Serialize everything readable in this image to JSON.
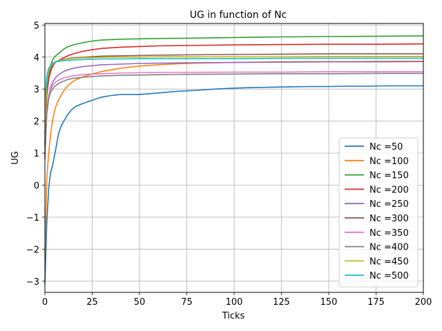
{
  "chart_data": {
    "type": "line",
    "title": "UG in function of Nc",
    "xlabel": "Ticks",
    "ylabel": "UG",
    "xlim": [
      0,
      200
    ],
    "ylim": [
      -3.35,
      5.05
    ],
    "xticks": [
      0,
      25,
      50,
      75,
      100,
      125,
      150,
      175,
      200
    ],
    "yticks": [
      -3,
      -2,
      -1,
      0,
      1,
      2,
      3,
      4,
      5
    ],
    "xtick_labels": [
      "0",
      "25",
      "50",
      "75",
      "100",
      "125",
      "150",
      "175",
      "200"
    ],
    "ytick_labels": [
      "−3",
      "−2",
      "−1",
      "0",
      "1",
      "2",
      "3",
      "4",
      "5"
    ],
    "grid": true,
    "legend_position": "lower right",
    "series": [
      {
        "name": "Nc =50",
        "color": "#1f77b4",
        "x": [
          0,
          1,
          2,
          3,
          4,
          5,
          6,
          7,
          8,
          9,
          10,
          12,
          14,
          16,
          18,
          20,
          25,
          30,
          35,
          40,
          45,
          50,
          60,
          70,
          80,
          90,
          100,
          110,
          120,
          130,
          140,
          150,
          160,
          170,
          180,
          190,
          200
        ],
        "y": [
          -3.1,
          -1.2,
          -0.1,
          0.4,
          0.6,
          0.9,
          1.2,
          1.55,
          1.75,
          1.9,
          2.0,
          2.2,
          2.35,
          2.45,
          2.5,
          2.55,
          2.65,
          2.75,
          2.8,
          2.83,
          2.83,
          2.83,
          2.88,
          2.93,
          2.96,
          3.0,
          3.03,
          3.05,
          3.06,
          3.07,
          3.08,
          3.08,
          3.09,
          3.09,
          3.1,
          3.1,
          3.1
        ]
      },
      {
        "name": "Nc =100",
        "color": "#ff7f0e",
        "x": [
          0,
          1,
          2,
          3,
          4,
          5,
          6,
          8,
          10,
          12,
          14,
          16,
          18,
          20,
          25,
          30,
          35,
          40,
          50,
          60,
          70,
          80,
          100,
          120,
          140,
          160,
          180,
          200
        ],
        "y": [
          -2.2,
          0.2,
          1.0,
          1.6,
          2.0,
          2.3,
          2.5,
          2.75,
          2.95,
          3.1,
          3.2,
          3.28,
          3.33,
          3.38,
          3.47,
          3.55,
          3.6,
          3.65,
          3.72,
          3.76,
          3.79,
          3.81,
          3.83,
          3.85,
          3.86,
          3.86,
          3.87,
          3.87
        ]
      },
      {
        "name": "Nc =150",
        "color": "#2ca02c",
        "x": [
          0,
          1,
          2,
          3,
          4,
          5,
          6,
          8,
          10,
          12,
          15,
          20,
          25,
          30,
          40,
          50,
          60,
          75,
          100,
          125,
          150,
          175,
          200
        ],
        "y": [
          1.2,
          3.0,
          3.5,
          3.75,
          3.9,
          4.0,
          4.05,
          4.15,
          4.25,
          4.32,
          4.38,
          4.45,
          4.5,
          4.53,
          4.56,
          4.57,
          4.58,
          4.59,
          4.61,
          4.63,
          4.64,
          4.65,
          4.66
        ]
      },
      {
        "name": "Nc =200",
        "color": "#d62728",
        "x": [
          0,
          1,
          2,
          3,
          4,
          5,
          6,
          8,
          10,
          12,
          15,
          20,
          25,
          30,
          40,
          50,
          60,
          75,
          100,
          125,
          150,
          175,
          200
        ],
        "y": [
          1.3,
          2.8,
          3.3,
          3.55,
          3.7,
          3.8,
          3.85,
          3.92,
          3.98,
          4.04,
          4.1,
          4.18,
          4.23,
          4.27,
          4.31,
          4.33,
          4.35,
          4.36,
          4.38,
          4.39,
          4.4,
          4.4,
          4.41
        ]
      },
      {
        "name": "Nc =250",
        "color": "#9467bd",
        "x": [
          0,
          1,
          2,
          3,
          4,
          5,
          6,
          8,
          10,
          12,
          15,
          20,
          25,
          30,
          40,
          50,
          60,
          75,
          100,
          125,
          150,
          175,
          200
        ],
        "y": [
          0.8,
          2.3,
          2.8,
          3.05,
          3.2,
          3.3,
          3.38,
          3.48,
          3.55,
          3.6,
          3.65,
          3.7,
          3.73,
          3.76,
          3.78,
          3.8,
          3.81,
          3.82,
          3.83,
          3.84,
          3.85,
          3.85,
          3.86
        ]
      },
      {
        "name": "Nc =300",
        "color": "#8c564b",
        "x": [
          0,
          1,
          2,
          3,
          4,
          5,
          6,
          8,
          10,
          12,
          15,
          20,
          25,
          30,
          40,
          50,
          60,
          75,
          100,
          125,
          150,
          175,
          200
        ],
        "y": [
          1.6,
          3.0,
          3.45,
          3.65,
          3.75,
          3.82,
          3.86,
          3.9,
          3.93,
          3.95,
          3.97,
          3.99,
          4.01,
          4.03,
          4.04,
          4.05,
          4.06,
          4.07,
          4.08,
          4.09,
          4.1,
          4.1,
          4.1
        ]
      },
      {
        "name": "Nc =350",
        "color": "#e377c2",
        "x": [
          0,
          1,
          2,
          3,
          4,
          5,
          6,
          8,
          10,
          12,
          15,
          20,
          25,
          30,
          40,
          50,
          60,
          75,
          100,
          125,
          150,
          175,
          200
        ],
        "y": [
          0.9,
          2.3,
          2.8,
          3.0,
          3.1,
          3.18,
          3.23,
          3.3,
          3.35,
          3.38,
          3.42,
          3.45,
          3.47,
          3.48,
          3.5,
          3.51,
          3.52,
          3.52,
          3.53,
          3.53,
          3.54,
          3.54,
          3.54
        ]
      },
      {
        "name": "Nc =400",
        "color": "#7f7f7f",
        "x": [
          0,
          1,
          2,
          3,
          4,
          5,
          6,
          8,
          10,
          12,
          15,
          20,
          25,
          30,
          40,
          50,
          60,
          75,
          100,
          125,
          150,
          175,
          200
        ],
        "y": [
          0.9,
          2.2,
          2.7,
          2.9,
          3.0,
          3.07,
          3.12,
          3.2,
          3.25,
          3.3,
          3.34,
          3.37,
          3.39,
          3.41,
          3.43,
          3.44,
          3.45,
          3.46,
          3.47,
          3.48,
          3.48,
          3.49,
          3.49
        ]
      },
      {
        "name": "Nc =450",
        "color": "#bcbd22",
        "x": [
          0,
          1,
          2,
          3,
          4,
          5,
          6,
          8,
          10,
          12,
          15,
          20,
          25,
          30,
          40,
          50,
          60,
          75,
          100,
          125,
          150,
          175,
          200
        ],
        "y": [
          1.8,
          3.2,
          3.55,
          3.7,
          3.78,
          3.83,
          3.87,
          3.9,
          3.92,
          3.94,
          3.96,
          3.97,
          3.98,
          3.99,
          4.0,
          4.0,
          4.01,
          4.01,
          4.01,
          4.01,
          4.02,
          4.02,
          4.02
        ]
      },
      {
        "name": "Nc =500",
        "color": "#17becf",
        "x": [
          0,
          1,
          2,
          3,
          4,
          5,
          6,
          8,
          10,
          12,
          15,
          20,
          25,
          30,
          40,
          50,
          60,
          75,
          100,
          125,
          150,
          175,
          200
        ],
        "y": [
          2.6,
          3.4,
          3.65,
          3.75,
          3.8,
          3.83,
          3.85,
          3.87,
          3.89,
          3.9,
          3.91,
          3.92,
          3.93,
          3.94,
          3.94,
          3.95,
          3.95,
          3.95,
          3.95,
          3.96,
          3.96,
          3.96,
          3.96
        ]
      }
    ]
  }
}
